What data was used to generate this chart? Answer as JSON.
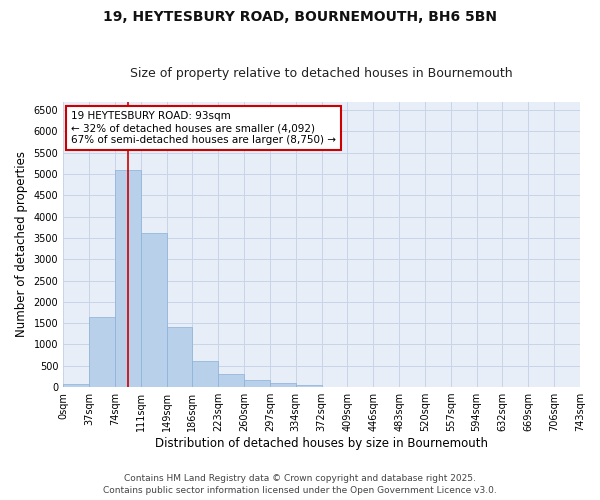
{
  "title1": "19, HEYTESBURY ROAD, BOURNEMOUTH, BH6 5BN",
  "title2": "Size of property relative to detached houses in Bournemouth",
  "xlabel": "Distribution of detached houses by size in Bournemouth",
  "ylabel": "Number of detached properties",
  "bar_values": [
    75,
    1650,
    5100,
    3620,
    1420,
    620,
    310,
    155,
    100,
    55,
    0,
    0,
    0,
    0,
    0,
    0,
    0,
    0,
    0,
    0
  ],
  "bin_labels": [
    "0sqm",
    "37sqm",
    "74sqm",
    "111sqm",
    "149sqm",
    "186sqm",
    "223sqm",
    "260sqm",
    "297sqm",
    "334sqm",
    "372sqm",
    "409sqm",
    "446sqm",
    "483sqm",
    "520sqm",
    "557sqm",
    "594sqm",
    "632sqm",
    "669sqm",
    "706sqm",
    "743sqm"
  ],
  "bar_color": "#b8d0ea",
  "bar_edge_color": "#8ab0d8",
  "vline_color": "#cc0000",
  "annotation_text": "19 HEYTESBURY ROAD: 93sqm\n← 32% of detached houses are smaller (4,092)\n67% of semi-detached houses are larger (8,750) →",
  "annotation_box_color": "#ffffff",
  "annotation_edge_color": "#cc0000",
  "ylim": [
    0,
    6700
  ],
  "yticks": [
    0,
    500,
    1000,
    1500,
    2000,
    2500,
    3000,
    3500,
    4000,
    4500,
    5000,
    5500,
    6000,
    6500
  ],
  "grid_color": "#c8d4e8",
  "bg_color": "#e8eef8",
  "footer1": "Contains HM Land Registry data © Crown copyright and database right 2025.",
  "footer2": "Contains public sector information licensed under the Open Government Licence v3.0.",
  "title_fontsize": 10,
  "subtitle_fontsize": 9,
  "axis_label_fontsize": 8.5,
  "tick_fontsize": 7,
  "annotation_fontsize": 7.5,
  "footer_fontsize": 6.5,
  "vline_x_data": 2.51
}
